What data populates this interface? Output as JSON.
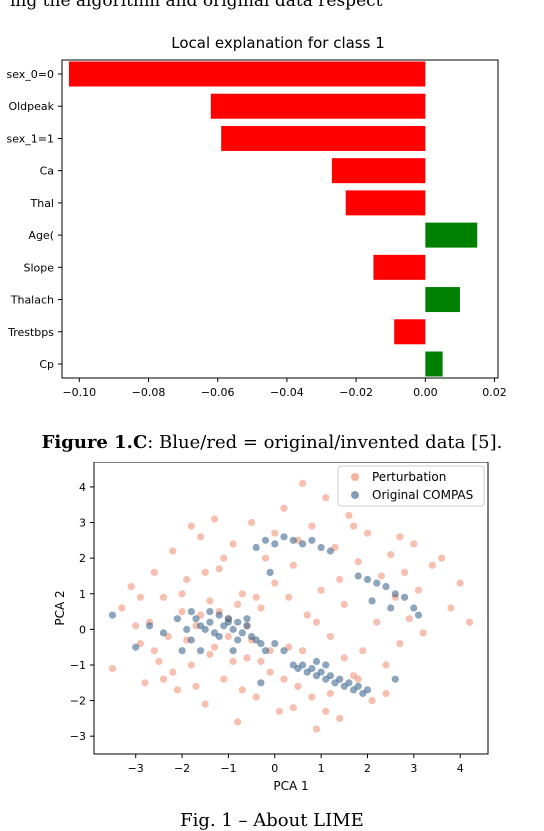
{
  "top_text": "ing the algorithm and original data respect",
  "captions": {
    "fig_c_label": "Figure 1.C",
    "fig_c_text": ": Blue/red = original/invented data [5].",
    "footer": "Fig. 1 – About LIME"
  },
  "colors": {
    "negative": "#ff0000",
    "positive": "#008000",
    "perturbation": "#f08060",
    "original": "#2d5b85"
  },
  "chart_data": [
    {
      "type": "bar",
      "orientation": "horizontal",
      "title": "Local explanation for class 1",
      "categories": [
        "sex_0=0",
        "Oldpeak",
        "sex_1=1",
        "Ca",
        "Thal",
        "Age(",
        "Slope",
        "Thalach",
        "Trestbps",
        "Cp"
      ],
      "values": [
        -0.103,
        -0.062,
        -0.059,
        -0.027,
        -0.023,
        0.015,
        -0.015,
        0.01,
        -0.009,
        0.005
      ],
      "xlim": [
        -0.105,
        0.021
      ],
      "xticks": [
        -0.1,
        -0.08,
        -0.06,
        -0.04,
        -0.02,
        0.0,
        0.02
      ],
      "xtick_labels": [
        "-0.10",
        "-0.08",
        "-0.06",
        "-0.04",
        "-0.02",
        "0.00",
        "0.02"
      ],
      "xlabel": "",
      "ylabel": ""
    },
    {
      "type": "scatter",
      "title": "",
      "xlabel": "PCA 1",
      "ylabel": "PCA 2",
      "xlim": [
        -3.9,
        4.6
      ],
      "ylim": [
        -3.5,
        4.7
      ],
      "xticks": [
        -3,
        -2,
        -1,
        0,
        1,
        2,
        3,
        4
      ],
      "yticks": [
        4,
        3,
        2,
        1,
        0,
        -1,
        -2,
        -3
      ],
      "legend_position": "top-right",
      "series": [
        {
          "name": "Perturbation",
          "points": [
            [
              -3.5,
              -1.1
            ],
            [
              -3.3,
              0.6
            ],
            [
              -3.1,
              1.2
            ],
            [
              -2.9,
              -0.4
            ],
            [
              -2.8,
              -1.5
            ],
            [
              -2.7,
              0.2
            ],
            [
              -2.6,
              1.6
            ],
            [
              -2.5,
              -0.9
            ],
            [
              -2.4,
              0.9
            ],
            [
              -2.3,
              -0.2
            ],
            [
              -2.2,
              2.2
            ],
            [
              -2.1,
              -1.7
            ],
            [
              -2.0,
              0.5
            ],
            [
              -1.9,
              1.4
            ],
            [
              -1.8,
              -1.0
            ],
            [
              -1.7,
              0.1
            ],
            [
              -1.6,
              2.6
            ],
            [
              -1.5,
              -2.1
            ],
            [
              -1.4,
              0.8
            ],
            [
              -1.3,
              -0.5
            ],
            [
              -1.2,
              1.7
            ],
            [
              -1.1,
              -1.4
            ],
            [
              -1.0,
              0.3
            ],
            [
              -0.9,
              2.4
            ],
            [
              -0.8,
              -2.6
            ],
            [
              -0.7,
              1.0
            ],
            [
              -0.6,
              -0.8
            ],
            [
              -0.5,
              3.0
            ],
            [
              -0.4,
              -1.9
            ],
            [
              -0.3,
              0.6
            ],
            [
              -0.2,
              2.0
            ],
            [
              -0.1,
              -1.2
            ],
            [
              0.0,
              1.3
            ],
            [
              0.1,
              -2.3
            ],
            [
              0.2,
              3.4
            ],
            [
              0.3,
              -0.5
            ],
            [
              0.4,
              1.8
            ],
            [
              0.5,
              -1.6
            ],
            [
              0.6,
              4.1
            ],
            [
              0.7,
              0.4
            ],
            [
              0.8,
              2.9
            ],
            [
              0.9,
              -2.8
            ],
            [
              1.0,
              1.1
            ],
            [
              1.1,
              3.7
            ],
            [
              1.2,
              -0.2
            ],
            [
              1.3,
              2.3
            ],
            [
              1.4,
              -2.5
            ],
            [
              1.5,
              0.7
            ],
            [
              1.6,
              3.2
            ],
            [
              1.7,
              -1.3
            ],
            [
              1.8,
              1.9
            ],
            [
              1.9,
              -0.6
            ],
            [
              2.0,
              2.7
            ],
            [
              2.1,
              -2.0
            ],
            [
              2.2,
              0.2
            ],
            [
              2.3,
              1.5
            ],
            [
              2.4,
              -1.0
            ],
            [
              2.5,
              2.1
            ],
            [
              2.6,
              0.9
            ],
            [
              2.7,
              -0.4
            ],
            [
              2.8,
              1.6
            ],
            [
              2.9,
              0.3
            ],
            [
              3.0,
              2.4
            ],
            [
              3.1,
              1.1
            ],
            [
              3.2,
              -0.1
            ],
            [
              3.4,
              1.8
            ],
            [
              3.6,
              2.0
            ],
            [
              3.8,
              0.6
            ],
            [
              4.0,
              1.3
            ],
            [
              4.2,
              0.2
            ],
            [
              -2.6,
              -0.6
            ],
            [
              -2.2,
              -1.2
            ],
            [
              -1.9,
              -0.3
            ],
            [
              -1.6,
              0.4
            ],
            [
              -1.4,
              -0.7
            ],
            [
              -1.2,
              0.5
            ],
            [
              -1.0,
              -0.2
            ],
            [
              -0.8,
              0.7
            ],
            [
              -0.6,
              0.1
            ],
            [
              -0.4,
              0.9
            ],
            [
              -2.0,
              1.0
            ],
            [
              -1.7,
              -1.6
            ],
            [
              -1.5,
              1.6
            ],
            [
              -1.1,
              2.0
            ],
            [
              -0.9,
              -0.9
            ],
            [
              -0.7,
              -1.7
            ],
            [
              -0.5,
              -0.3
            ],
            [
              -0.3,
              -0.9
            ],
            [
              0.3,
              0.9
            ],
            [
              0.6,
              -0.6
            ],
            [
              0.9,
              0.2
            ],
            [
              1.2,
              -1.8
            ],
            [
              1.5,
              -0.8
            ],
            [
              1.8,
              -1.4
            ],
            [
              0.4,
              -2.2
            ],
            [
              0.8,
              -1.9
            ],
            [
              1.1,
              -2.3
            ],
            [
              0.2,
              -1.4
            ],
            [
              -0.1,
              -0.6
            ],
            [
              2.4,
              -1.8
            ],
            [
              -2.4,
              -1.4
            ],
            [
              -2.9,
              0.9
            ],
            [
              -3.0,
              0.1
            ],
            [
              -1.8,
              2.9
            ],
            [
              -1.3,
              3.1
            ],
            [
              0.0,
              2.7
            ],
            [
              0.5,
              2.5
            ],
            [
              1.7,
              2.9
            ],
            [
              1.4,
              1.4
            ],
            [
              2.7,
              2.6
            ]
          ]
        },
        {
          "name": "Original COMPAS",
          "points": [
            [
              -3.5,
              0.4
            ],
            [
              -3.0,
              -0.5
            ],
            [
              -2.7,
              0.1
            ],
            [
              -2.4,
              -0.1
            ],
            [
              -2.1,
              0.3
            ],
            [
              -1.9,
              0.0
            ],
            [
              -1.8,
              -0.3
            ],
            [
              -1.7,
              0.3
            ],
            [
              -1.6,
              0.1
            ],
            [
              -1.5,
              0.0
            ],
            [
              -1.4,
              0.2
            ],
            [
              -1.3,
              -0.1
            ],
            [
              -1.2,
              0.4
            ],
            [
              -1.1,
              0.1
            ],
            [
              -1.0,
              0.2
            ],
            [
              -0.9,
              0.0
            ],
            [
              -0.8,
              0.2
            ],
            [
              -0.7,
              -0.1
            ],
            [
              -0.6,
              0.1
            ],
            [
              -0.5,
              -0.2
            ],
            [
              -0.4,
              -0.3
            ],
            [
              -0.3,
              -0.4
            ],
            [
              -0.2,
              -0.6
            ],
            [
              -1.8,
              0.5
            ],
            [
              -1.4,
              0.5
            ],
            [
              -1.0,
              0.3
            ],
            [
              -0.6,
              0.3
            ],
            [
              -1.2,
              -0.2
            ],
            [
              -0.8,
              -0.3
            ],
            [
              -2.0,
              -0.6
            ],
            [
              0.4,
              -1.0
            ],
            [
              0.5,
              -1.1
            ],
            [
              0.6,
              -1.0
            ],
            [
              0.7,
              -1.2
            ],
            [
              0.8,
              -1.1
            ],
            [
              0.9,
              -1.3
            ],
            [
              1.0,
              -1.2
            ],
            [
              1.1,
              -1.4
            ],
            [
              1.2,
              -1.3
            ],
            [
              1.3,
              -1.5
            ],
            [
              1.4,
              -1.4
            ],
            [
              1.5,
              -1.6
            ],
            [
              1.6,
              -1.5
            ],
            [
              1.7,
              -1.7
            ],
            [
              1.8,
              -1.6
            ],
            [
              1.9,
              -1.8
            ],
            [
              2.0,
              -1.7
            ],
            [
              1.1,
              -1.0
            ],
            [
              0.9,
              -0.9
            ],
            [
              0.2,
              -0.6
            ],
            [
              -0.4,
              2.3
            ],
            [
              -0.2,
              2.5
            ],
            [
              0.0,
              2.4
            ],
            [
              0.2,
              2.6
            ],
            [
              0.4,
              2.5
            ],
            [
              0.6,
              2.4
            ],
            [
              0.8,
              2.5
            ],
            [
              1.0,
              2.3
            ],
            [
              1.2,
              2.2
            ],
            [
              -0.1,
              1.6
            ],
            [
              1.8,
              1.5
            ],
            [
              2.0,
              1.4
            ],
            [
              2.2,
              1.3
            ],
            [
              2.4,
              1.2
            ],
            [
              2.6,
              1.0
            ],
            [
              2.8,
              0.9
            ],
            [
              3.0,
              0.6
            ],
            [
              3.1,
              0.4
            ],
            [
              2.1,
              0.8
            ],
            [
              2.5,
              0.6
            ],
            [
              -0.9,
              -0.6
            ],
            [
              -0.3,
              -1.5
            ],
            [
              2.6,
              -1.4
            ],
            [
              -1.6,
              -0.6
            ],
            [
              0.0,
              -0.4
            ]
          ]
        }
      ]
    }
  ]
}
